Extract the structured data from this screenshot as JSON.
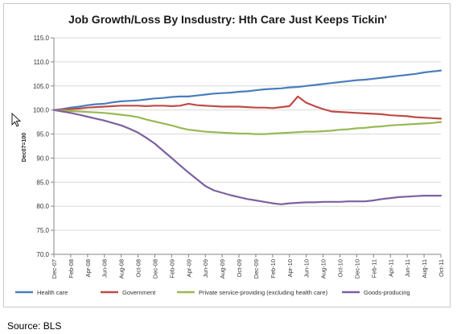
{
  "source": "Source: BLS",
  "colors": {
    "health": "#4a7ebb",
    "government": "#be4b48",
    "private": "#98b954",
    "goods": "#7d60a0",
    "grid": "#d9d9d9",
    "axis": "#868686"
  },
  "chart_data": {
    "type": "line",
    "title": "Job Growth/Loss By Insdustry: Hth Care Just Keeps Tickin'",
    "ylabel": "Dec07=100",
    "xlabel": "",
    "ylim": [
      70,
      115
    ],
    "yticks": [
      "70.0",
      "75.0",
      "80.0",
      "85.0",
      "90.0",
      "95.0",
      "100.0",
      "105.0",
      "110.0",
      "115.0"
    ],
    "grid": true,
    "legend_position": "bottom",
    "x_tick_labels": [
      "Dec-07",
      "Feb-08",
      "Apr-08",
      "Jun-08",
      "Aug-08",
      "Oct-08",
      "Dec-08",
      "Feb-09",
      "Apr-09",
      "Jun-09",
      "Aug-09",
      "Oct-09",
      "Dec-09",
      "Feb-10",
      "Apr-10",
      "Jun-10",
      "Aug-10",
      "Oct-10",
      "Dec-10",
      "Feb-11",
      "Apr-11",
      "Jun-11",
      "Aug-11",
      "Oct-11"
    ],
    "x_tick_every": 2,
    "x": [
      "Dec-07",
      "Jan-08",
      "Feb-08",
      "Mar-08",
      "Apr-08",
      "May-08",
      "Jun-08",
      "Jul-08",
      "Aug-08",
      "Sep-08",
      "Oct-08",
      "Nov-08",
      "Dec-08",
      "Jan-09",
      "Feb-09",
      "Mar-09",
      "Apr-09",
      "May-09",
      "Jun-09",
      "Jul-09",
      "Aug-09",
      "Sep-09",
      "Oct-09",
      "Nov-09",
      "Dec-09",
      "Jan-10",
      "Feb-10",
      "Mar-10",
      "Apr-10",
      "May-10",
      "Jun-10",
      "Jul-10",
      "Aug-10",
      "Sep-10",
      "Oct-10",
      "Nov-10",
      "Dec-10",
      "Jan-11",
      "Feb-11",
      "Mar-11",
      "Apr-11",
      "May-11",
      "Jun-11",
      "Jul-11",
      "Aug-11",
      "Sep-11",
      "Oct-11"
    ],
    "series": [
      {
        "name": "Health care",
        "color_key": "health",
        "values": [
          100.0,
          100.2,
          100.5,
          100.7,
          101.0,
          101.2,
          101.3,
          101.6,
          101.8,
          101.9,
          102.0,
          102.2,
          102.4,
          102.5,
          102.7,
          102.8,
          102.8,
          103.0,
          103.2,
          103.4,
          103.5,
          103.6,
          103.8,
          103.9,
          104.1,
          104.3,
          104.4,
          104.5,
          104.7,
          104.8,
          105.0,
          105.2,
          105.4,
          105.6,
          105.8,
          106.0,
          106.2,
          106.3,
          106.5,
          106.7,
          106.9,
          107.1,
          107.3,
          107.5,
          107.8,
          108.0,
          108.2
        ]
      },
      {
        "name": "Government",
        "color_key": "government",
        "values": [
          100.0,
          100.1,
          100.2,
          100.3,
          100.5,
          100.6,
          100.7,
          100.8,
          100.9,
          100.9,
          100.9,
          100.8,
          100.9,
          100.9,
          100.8,
          100.9,
          101.3,
          101.0,
          100.9,
          100.8,
          100.7,
          100.7,
          100.7,
          100.6,
          100.5,
          100.5,
          100.4,
          100.6,
          100.8,
          102.8,
          101.5,
          100.8,
          100.2,
          99.7,
          99.6,
          99.5,
          99.4,
          99.3,
          99.2,
          99.1,
          98.9,
          98.8,
          98.7,
          98.5,
          98.4,
          98.3,
          98.2
        ]
      },
      {
        "name": "Private service-providing (excluding health care)",
        "color_key": "private",
        "values": [
          100.0,
          99.9,
          99.8,
          99.7,
          99.6,
          99.5,
          99.4,
          99.2,
          99.0,
          98.8,
          98.5,
          98.0,
          97.6,
          97.2,
          96.8,
          96.3,
          95.9,
          95.7,
          95.5,
          95.4,
          95.3,
          95.2,
          95.1,
          95.1,
          95.0,
          95.0,
          95.1,
          95.2,
          95.3,
          95.4,
          95.5,
          95.5,
          95.6,
          95.7,
          95.9,
          96.0,
          96.2,
          96.3,
          96.5,
          96.6,
          96.8,
          96.9,
          97.0,
          97.1,
          97.2,
          97.3,
          97.5
        ]
      },
      {
        "name": "Goods-producing",
        "color_key": "goods",
        "values": [
          100.0,
          99.7,
          99.4,
          99.0,
          98.6,
          98.2,
          97.8,
          97.3,
          96.8,
          96.1,
          95.3,
          94.2,
          93.0,
          91.5,
          90.0,
          88.5,
          87.0,
          85.6,
          84.2,
          83.3,
          82.8,
          82.3,
          81.9,
          81.5,
          81.2,
          80.9,
          80.6,
          80.4,
          80.6,
          80.7,
          80.8,
          80.8,
          80.9,
          80.9,
          80.9,
          81.0,
          81.0,
          81.0,
          81.2,
          81.5,
          81.7,
          81.9,
          82.0,
          82.1,
          82.2,
          82.2,
          82.2
        ]
      }
    ]
  }
}
